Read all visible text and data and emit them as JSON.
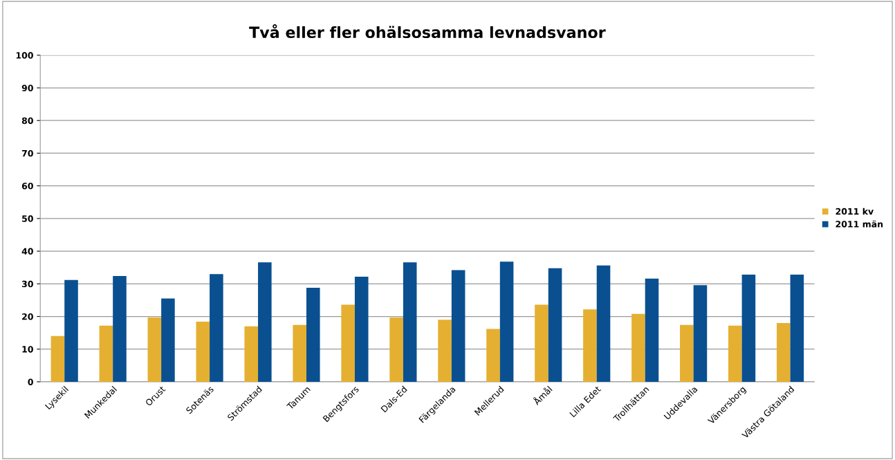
{
  "chart_data": {
    "type": "bar",
    "title": "Två eller fler ohälsosamma levnadsvanor",
    "categories": [
      "Lysekil",
      "Munkedal",
      "Orust",
      "Sotenäs",
      "Strömstad",
      "Tanum",
      "Bengtsfors",
      "Dals-Ed",
      "Färgelanda",
      "Mellerud",
      "Åmål",
      "Lilla Edet",
      "Trollhättan",
      "Uddevalla",
      "Vänersborg",
      "Västra Götaland"
    ],
    "series": [
      {
        "name": "2011 kv",
        "color": "#e5b031",
        "values": [
          14,
          17.2,
          19.7,
          18.4,
          17,
          17.4,
          23.6,
          19.7,
          19,
          16.2,
          23.6,
          22.2,
          20.8,
          17.4,
          17.2,
          18
        ]
      },
      {
        "name": "2011 män",
        "color": "#0a5091",
        "values": [
          31.2,
          32.4,
          25.5,
          33,
          36.6,
          28.8,
          32.2,
          36.6,
          34.2,
          36.8,
          34.8,
          35.6,
          31.6,
          29.6,
          32.8,
          32.8
        ]
      }
    ],
    "ylim": [
      0,
      100
    ],
    "yticks": [
      0,
      10,
      20,
      30,
      40,
      50,
      60,
      70,
      80,
      90,
      100
    ],
    "grid": "y",
    "legend": "right"
  }
}
